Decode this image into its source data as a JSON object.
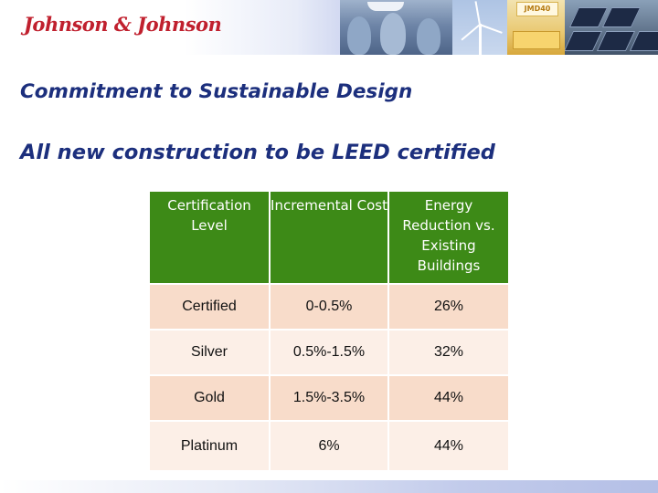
{
  "banner": {
    "logo": "Johnson & Johnson",
    "photos": {
      "baby_product_label": "JMD40"
    }
  },
  "slide": {
    "title": "Commitment to Sustainable Design",
    "subtitle": "All new construction to be LEED certified"
  },
  "table": {
    "headers": [
      "Certification Level",
      "Incremental Cost",
      "Energy Reduction vs. Existing Buildings"
    ],
    "rows": [
      [
        "Certified",
        "0-0.5%",
        "26%"
      ],
      [
        "Silver",
        "0.5%-1.5%",
        "32%"
      ],
      [
        "Gold",
        "1.5%-3.5%",
        "44%"
      ],
      [
        "Platinum",
        "6%",
        "44%"
      ]
    ]
  },
  "colors": {
    "brand_red": "#c0202e",
    "title_blue": "#1c2f7d",
    "header_green": "#3d8a17",
    "row_peach": "#f8dcca",
    "row_light": "#fcefe7"
  }
}
